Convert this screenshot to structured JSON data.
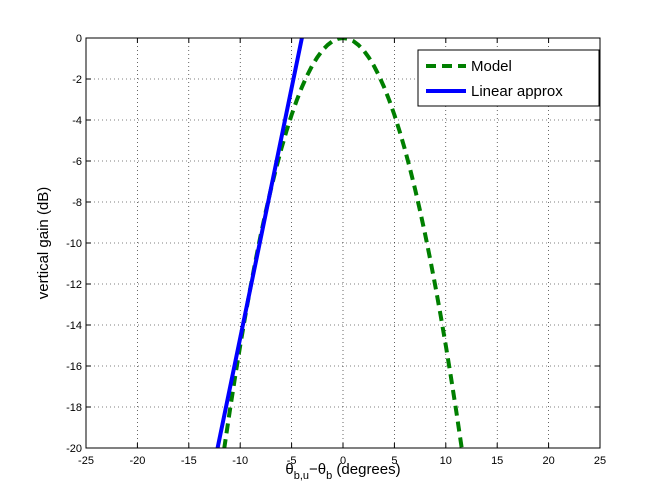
{
  "chart_data": {
    "type": "line",
    "title": "",
    "xlabel": "θb,u−θb (degrees)",
    "xlabel_parts": {
      "theta1": "θ",
      "sub1": "b,u",
      "minus": "−",
      "theta2": "θ",
      "sub2": "b",
      "unit": " (degrees)"
    },
    "ylabel": "vertical gain (dB)",
    "xlim": [
      -25,
      25
    ],
    "ylim": [
      -20,
      0
    ],
    "xticks": [
      -25,
      -20,
      -15,
      -10,
      -5,
      0,
      5,
      10,
      15,
      20,
      25
    ],
    "yticks": [
      0,
      -2,
      -4,
      -6,
      -8,
      -10,
      -12,
      -14,
      -16,
      -18,
      -20
    ],
    "grid": true,
    "legend_position": "top-right",
    "series": [
      {
        "name": "Model",
        "style": "dashed",
        "color": "#007f00",
        "x": [
          -12,
          -11.5,
          -11,
          -10.5,
          -10,
          -9.5,
          -9,
          -8.5,
          -8,
          -7.5,
          -7,
          -6.5,
          -6,
          -5.5,
          -5,
          -4.5,
          -4,
          -3.5,
          -3,
          -2.5,
          -2,
          -1.5,
          -1,
          -0.5,
          0,
          0.5,
          1,
          1.5,
          2,
          2.5,
          3,
          3.5,
          4,
          4.5,
          5,
          5.5,
          6,
          6.5,
          7,
          7.5,
          8,
          8.5,
          9,
          9.5,
          10,
          10.5,
          11,
          11.5,
          12
        ],
        "y": [
          -21.6,
          -19.84,
          -18.15,
          -16.54,
          -15.0,
          -13.54,
          -12.15,
          -10.84,
          -9.6,
          -8.44,
          -7.35,
          -6.34,
          -5.4,
          -4.54,
          -3.75,
          -3.04,
          -2.4,
          -1.84,
          -1.35,
          -0.94,
          -0.6,
          -0.34,
          -0.15,
          -0.04,
          0,
          -0.04,
          -0.15,
          -0.34,
          -0.6,
          -0.94,
          -1.35,
          -1.84,
          -2.4,
          -3.04,
          -3.75,
          -4.54,
          -5.4,
          -6.34,
          -7.35,
          -8.44,
          -9.6,
          -10.84,
          -12.15,
          -13.54,
          -15.0,
          -16.54,
          -18.15,
          -19.84,
          -21.6
        ]
      },
      {
        "name": "Linear approx",
        "style": "solid",
        "color": "#0000ff",
        "x": [
          -12.2,
          -4.0
        ],
        "y": [
          -20,
          0
        ]
      }
    ]
  }
}
